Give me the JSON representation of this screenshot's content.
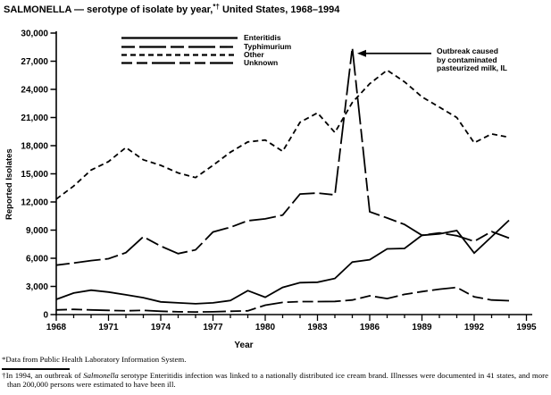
{
  "title": {
    "main": "SALMONELLA — serotype of isolate by year,",
    "sup": "*†",
    "tail": " United States, 1968–1994"
  },
  "chart_data": {
    "type": "line",
    "title": "SALMONELLA — serotype of isolate by year, United States, 1968–1994",
    "xlabel": "Year",
    "ylabel": "Reported Isolates",
    "ylim": [
      0,
      30000
    ],
    "y_tick_step": 3000,
    "y_tick_labels": [
      "0",
      "3,000",
      "6,000",
      "9,000",
      "12,000",
      "15,000",
      "18,000",
      "21,000",
      "24,000",
      "27,000",
      "30,000"
    ],
    "x_axis_range": [
      1968,
      1995
    ],
    "x_major_tick_labels": [
      "1968",
      "1971",
      "1974",
      "1977",
      "1980",
      "1983",
      "1986",
      "1989",
      "1992",
      "1995"
    ],
    "x_minor_tick_every_years": 1,
    "grid": false,
    "legend_position": "top-inside",
    "years": [
      1968,
      1969,
      1970,
      1971,
      1972,
      1973,
      1974,
      1975,
      1976,
      1977,
      1978,
      1979,
      1980,
      1981,
      1982,
      1983,
      1984,
      1985,
      1986,
      1987,
      1988,
      1989,
      1990,
      1991,
      1992,
      1993,
      1994
    ],
    "series": [
      {
        "name": "Enteritidis",
        "dash": "none",
        "values": [
          1620,
          2300,
          2600,
          2400,
          2100,
          1800,
          1350,
          1250,
          1150,
          1250,
          1500,
          2550,
          1850,
          2900,
          3400,
          3450,
          3850,
          5600,
          5850,
          7000,
          7050,
          8450,
          8600,
          8950,
          6550,
          8300,
          10050
        ]
      },
      {
        "name": "Typhimurium",
        "dash": "15 5 30 5",
        "values": [
          5270,
          5500,
          5750,
          5950,
          6600,
          8300,
          7300,
          6500,
          6900,
          8800,
          9300,
          10000,
          10200,
          10600,
          12850,
          12950,
          12750,
          28450,
          10950,
          10300,
          9600,
          8450,
          8700,
          8400,
          7800,
          8850,
          8150
        ]
      },
      {
        "name": "Other",
        "dash": "6 4",
        "values": [
          12300,
          13700,
          15400,
          16300,
          17800,
          16500,
          15900,
          15100,
          14600,
          15900,
          17300,
          18400,
          18600,
          17400,
          20500,
          21500,
          19400,
          22600,
          24600,
          26050,
          24800,
          23200,
          22100,
          21000,
          18300,
          19250,
          18900
        ]
      },
      {
        "name": "Unknown",
        "dash": "12 5 12 5 26 5",
        "values": [
          500,
          550,
          500,
          450,
          400,
          450,
          350,
          300,
          280,
          300,
          350,
          400,
          1000,
          1300,
          1380,
          1380,
          1400,
          1550,
          2000,
          1700,
          2150,
          2450,
          2700,
          2900,
          1900,
          1550,
          1480
        ]
      }
    ],
    "annotation": {
      "line1": "Outbreak caused",
      "line2": "by contaminated",
      "line3": "pasteurized milk, IL",
      "points_to_year": 1985,
      "points_to_value": 28450
    }
  },
  "footnotes": {
    "fn1": "*Data from Public Health Laboratory Information System.",
    "fn2_prefix": "†In 1994, an outbreak of ",
    "fn2_italic": "Salmonella",
    "fn2_suffix": " serotype Enteritidis infection was linked to a nationally distributed ice cream brand. Illnesses were documented in 41 states, and more than 200,000 persons were estimated to have been ill."
  }
}
